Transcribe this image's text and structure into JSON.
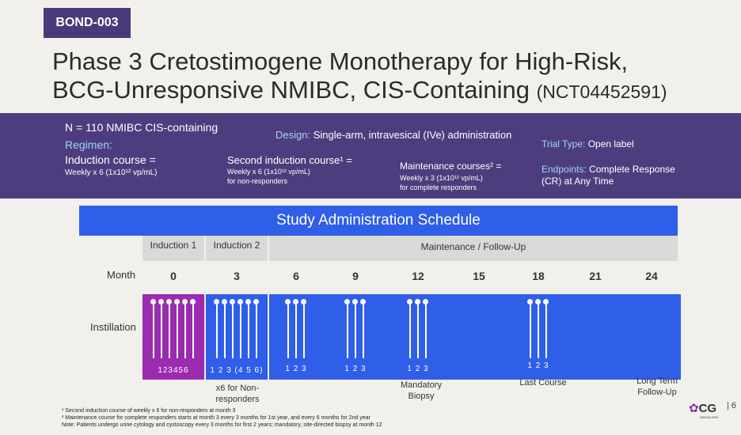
{
  "tag": "BOND-003",
  "title": {
    "line1": "Phase 3 Cretostimogene Monotherapy for High-Risk,",
    "line2": "BCG-Unresponsive NMIBC, CIS-Containing",
    "nct": "(NCT04452591)"
  },
  "band": {
    "n_text": "N = 110 NMIBC CIS-containing",
    "design_label": "Design:",
    "design_value": "Single-arm, intravesical (IVe) administration",
    "trial_type_label": "Trial Type:",
    "trial_type_value": "Open label",
    "regimen_label": "Regimen:",
    "induction_title": "Induction course =",
    "induction_detail": "Weekly x 6 (1x10¹² vp/mL)",
    "second_title": "Second induction course¹ =",
    "second_detail": "Weekly x 6 (1x10¹² vp/mL)",
    "second_note": "for non-responders",
    "maint_title": "Maintenance courses² =",
    "maint_detail": "Weekly x 3 (1x10¹² vp/mL)",
    "maint_note": "for complete responders",
    "endpoints_label": "Endpoints:",
    "endpoints_value1": "Complete Response",
    "endpoints_value2": "(CR) at Any Time"
  },
  "schedule": {
    "header": "Study Administration Schedule",
    "phase1": "Induction 1",
    "phase2": "Induction 2",
    "phase3": "Maintenance / Follow-Up",
    "month_label": "Month",
    "months": [
      "0",
      "3",
      "6",
      "9",
      "12",
      "15",
      "18",
      "21",
      "24"
    ],
    "instillation_label": "Instillation",
    "nums_ind1": "123456",
    "nums_ind2": "1 2 3 (4 5 6)",
    "nums_maint": "1 2 3",
    "below_ind2_1": "x6 for Non-",
    "below_ind2_2": "responders",
    "below_12_1": "Mandatory",
    "below_12_2": "Biopsy",
    "below_18": "Last Course",
    "below_24_1": "Long Term",
    "below_24_2": "Follow-Up",
    "colors": {
      "induction1": "#9b2bb0",
      "induction2": "#2f5ee8",
      "maintenance": "#2f5ee8"
    }
  },
  "footnotes": {
    "f1": "¹ Second induction course of weekly x 6 for non-responders at month 3",
    "f2": "² Maintenance course for complete responders starts at month 3 every 3 months for 1st year, and every 6 months for 2nd year",
    "f3": "Note: Patients undergo urine cytology and cystoscopy every 3 months for first 2 years; mandatory, site-directed biopsy at month 12"
  },
  "logo": "CG",
  "logo_sub": "ONCOLOGY",
  "page": "6"
}
